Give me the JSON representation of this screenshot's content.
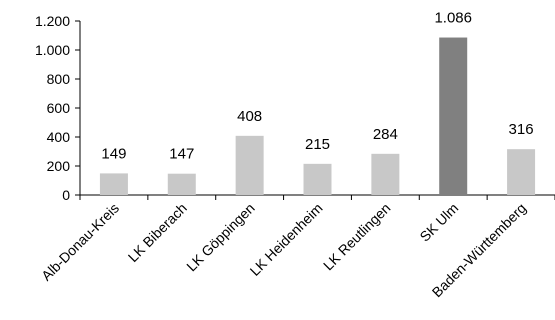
{
  "chart_data": {
    "type": "bar",
    "categories": [
      "Alb-Donau-Kreis",
      "LK Biberach",
      "LK Göppingen",
      "LK Heidenheim",
      "LK Reutlingen",
      "SK Ulm",
      "Baden-Württemberg"
    ],
    "values": [
      149,
      147,
      408,
      215,
      284,
      1086,
      316
    ],
    "data_labels": [
      "149",
      "147",
      "408",
      "215",
      "284",
      "1.086",
      "316"
    ],
    "bar_colors": [
      "#c8c8c8",
      "#c8c8c8",
      "#c8c8c8",
      "#c8c8c8",
      "#c8c8c8",
      "#808080",
      "#c8c8c8"
    ],
    "ylim": [
      0,
      1200
    ],
    "yticks": [
      0,
      200,
      400,
      600,
      800,
      1000,
      1200
    ],
    "ytick_labels": [
      "0",
      "200",
      "400",
      "600",
      "800",
      "1.000",
      "1.200"
    ],
    "title": "",
    "xlabel": "",
    "ylabel": "",
    "grid": false,
    "axis_color": "#000000"
  }
}
